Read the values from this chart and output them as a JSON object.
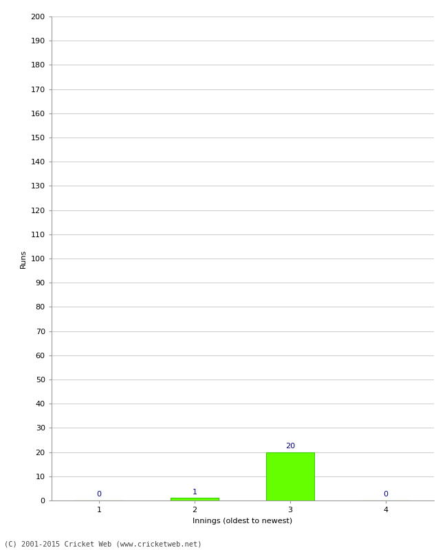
{
  "xlabel": "Innings (oldest to newest)",
  "ylabel": "Runs",
  "categories": [
    1,
    2,
    3,
    4
  ],
  "values": [
    0,
    1,
    20,
    0
  ],
  "bar_color": "#66ff00",
  "bar_edge_color": "#33cc00",
  "label_color": "#000080",
  "ylim": [
    0,
    200
  ],
  "yticks": [
    0,
    10,
    20,
    30,
    40,
    50,
    60,
    70,
    80,
    90,
    100,
    110,
    120,
    130,
    140,
    150,
    160,
    170,
    180,
    190,
    200
  ],
  "xticks": [
    1,
    2,
    3,
    4
  ],
  "background_color": "#ffffff",
  "grid_color": "#cccccc",
  "footer": "(C) 2001-2015 Cricket Web (www.cricketweb.net)",
  "bar_width": 0.5,
  "label_fontsize": 8,
  "axis_fontsize": 8,
  "ylabel_fontsize": 8,
  "footer_fontsize": 7.5
}
